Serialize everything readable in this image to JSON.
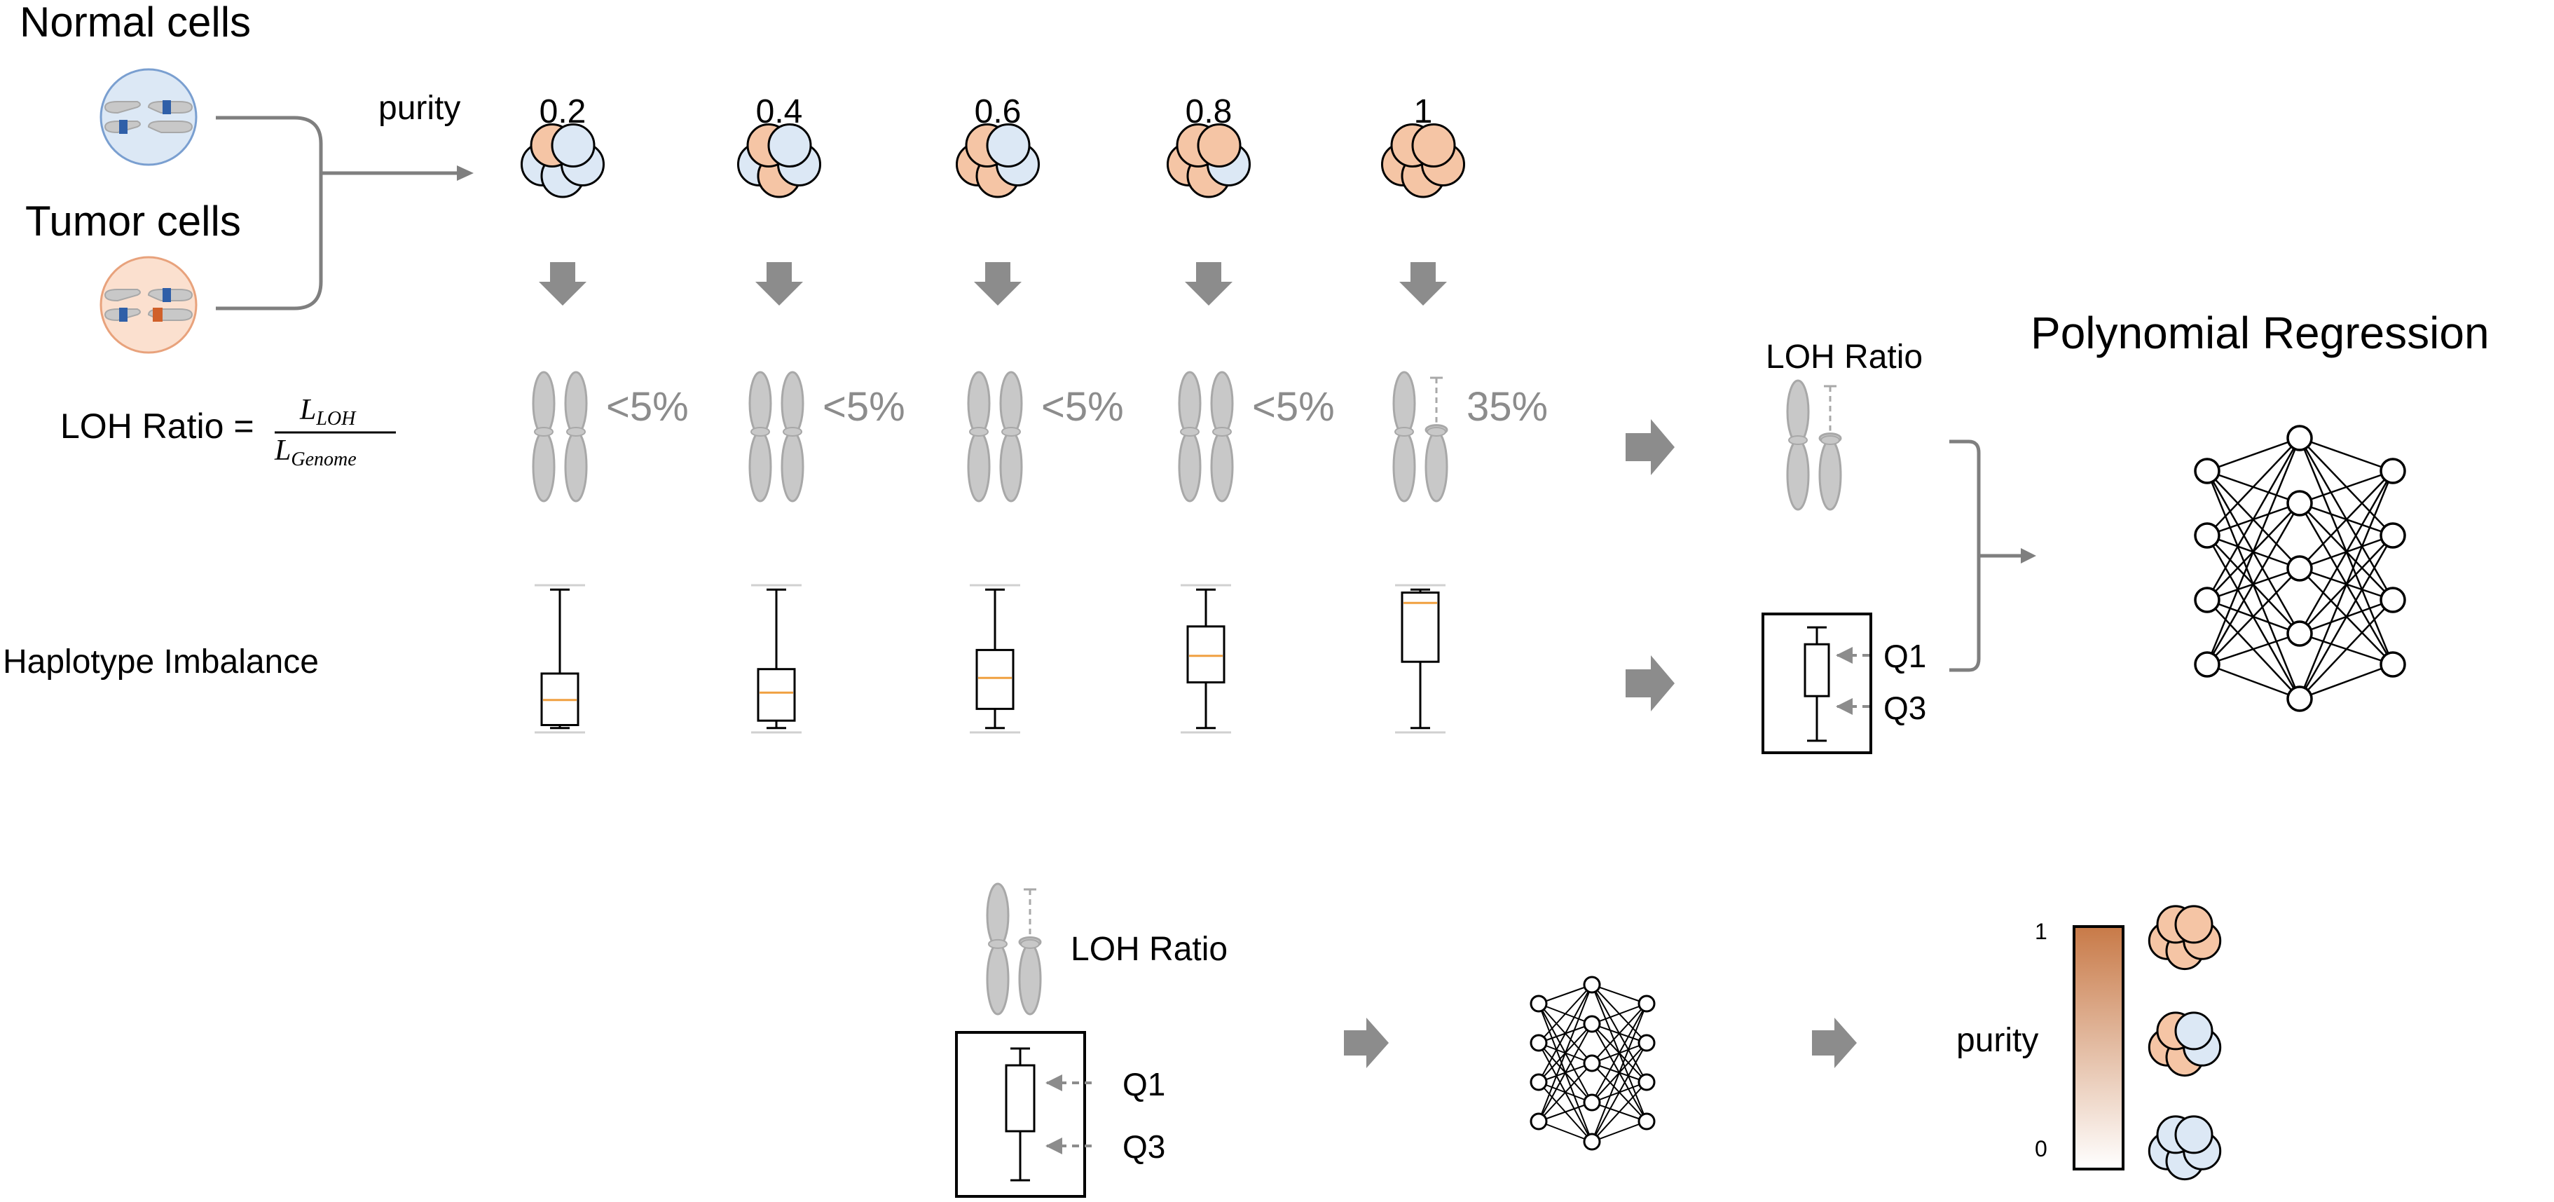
{
  "colors": {
    "normal_fill": "#dce8f5",
    "normal_stroke": "#7a9fd0",
    "tumor_fill": "#f5c5a5",
    "tumor_ring_fill": "#fbe0cf",
    "tumor_ring_stroke": "#e8a27c",
    "chromosome_fill": "#c8c8c8",
    "chromosome_stroke": "#a8a8a8",
    "gray_text": "#8c8c8c",
    "arrow_gray": "#8c8c8c",
    "median_orange": "#f0a040",
    "blue_band": "#2f5fa8",
    "orange_band": "#d0602a",
    "gradient_top": "#c87a48",
    "gradient_bottom": "#ffffff"
  },
  "labels": {
    "normal_cells": "Normal cells",
    "tumor_cells": "Tumor cells",
    "purity": "purity",
    "loh_ratio_lhs": "LOH Ratio =",
    "loh_ratio_num_base": "L",
    "loh_ratio_num_sub": "LOH",
    "loh_ratio_den_base": "L",
    "loh_ratio_den_sub": "Genome",
    "haplotype_imbalance": "Haplotype Imbalance",
    "loh_ratio": "LOH Ratio",
    "polynomial_regression": "Polynomial Regression",
    "q1": "Q1",
    "q3": "Q3",
    "bottom_loh_ratio": "LOH Ratio",
    "bottom_q1": "Q1",
    "bottom_q3": "Q3",
    "bottom_purity": "purity",
    "scale_top": "1",
    "scale_bottom": "0"
  },
  "samples": [
    {
      "purity": "0.2",
      "loh_text": "<5%",
      "tumor_cells": 1,
      "loh": false,
      "box": {
        "q1": 0.6,
        "median": 0.78,
        "q3": 0.95,
        "wlo": 0.22,
        "whi": 1.08
      }
    },
    {
      "purity": "0.4",
      "loh_text": "<5%",
      "tumor_cells": 2,
      "loh": false,
      "box": {
        "q1": 0.57,
        "median": 0.73,
        "q3": 0.92,
        "wlo": 0.22,
        "whi": 1.08
      }
    },
    {
      "purity": "0.6",
      "loh_text": "<5%",
      "tumor_cells": 3,
      "loh": false,
      "box": {
        "q1": 0.44,
        "median": 0.63,
        "q3": 0.84,
        "wlo": 0.22,
        "whi": 1.08
      }
    },
    {
      "purity": "0.8",
      "loh_text": "<5%",
      "tumor_cells": 4,
      "loh": false,
      "box": {
        "q1": 0.28,
        "median": 0.48,
        "q3": 0.66,
        "wlo": 0.22,
        "whi": 1.08
      }
    },
    {
      "purity": "1",
      "loh_text": "35%",
      "tumor_cells": 5,
      "loh": true,
      "box": {
        "q1": 0.05,
        "median": 0.12,
        "q3": 0.52,
        "wlo": 0.22,
        "whi": 1.08
      }
    }
  ],
  "output_cells": [
    {
      "name": "high-purity-cells",
      "tumor_cells": 5
    },
    {
      "name": "mid-purity-cells",
      "tumor_cells": 3
    },
    {
      "name": "low-purity-cells",
      "tumor_cells": 0
    }
  ]
}
